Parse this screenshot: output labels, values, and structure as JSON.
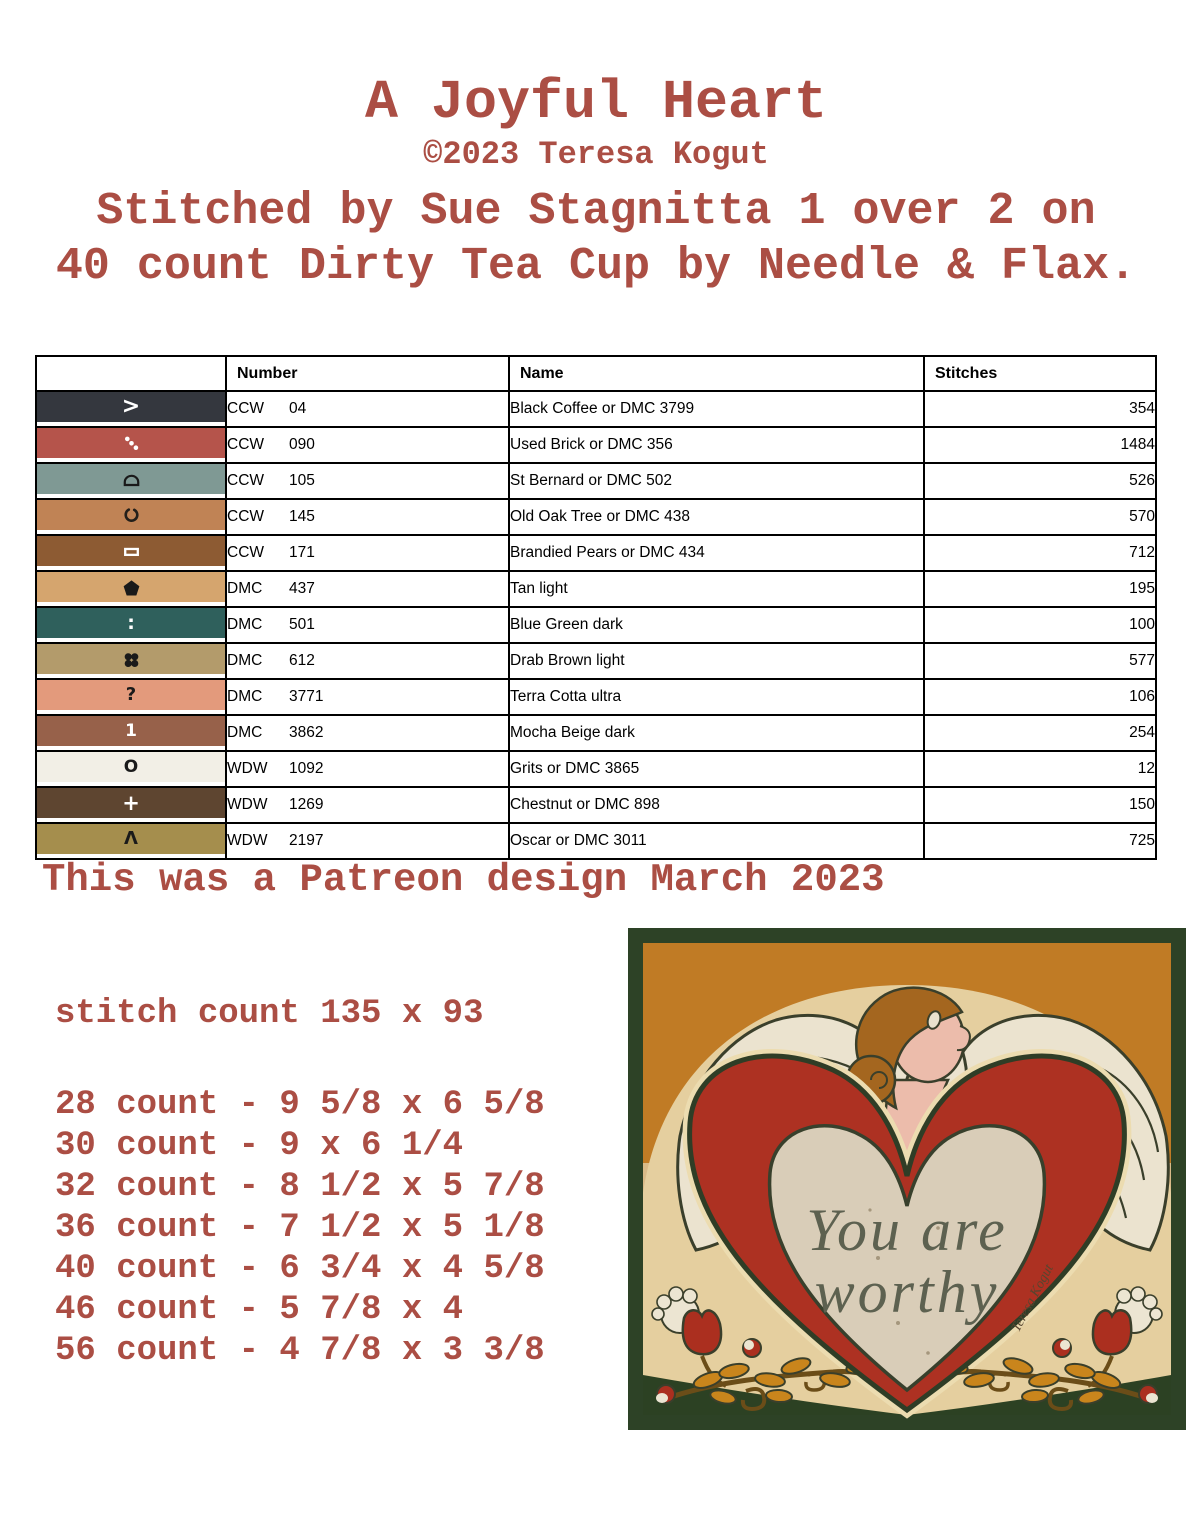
{
  "page": {
    "title": "A Joyful Heart",
    "copyright": "©2023 Teresa Kogut",
    "subtitle_line1": "Stitched by Sue Stagnitta 1 over 2 on",
    "subtitle_line2": "40 count Dirty Tea Cup by Needle & Flax.",
    "patreon_note": "This was a Patreon design March 2023",
    "accent_color": "#ab4e44"
  },
  "table": {
    "headers": {
      "symbol": "",
      "number": "Number",
      "name": "Name",
      "stitches": "Stitches"
    },
    "rows": [
      {
        "symbol": {
          "kind": "text",
          "value": ">",
          "color": "#ffffff",
          "size": 22
        },
        "swatch": "#34373e",
        "brand": "CCW",
        "code": "04",
        "name": "Black Coffee or DMC 3799",
        "stitches": "354"
      },
      {
        "symbol": {
          "kind": "shape",
          "value": "diag-dots",
          "color": "#ffffff"
        },
        "swatch": "#b5544b",
        "brand": "CCW",
        "code": "090",
        "name": "Used Brick or DMC 356",
        "stitches": "1484"
      },
      {
        "symbol": {
          "kind": "shape",
          "value": "arch",
          "color": "#1a1a1a"
        },
        "swatch": "#7f9994",
        "brand": "CCW",
        "code": "105",
        "name": "St Bernard or DMC 502",
        "stitches": "526"
      },
      {
        "symbol": {
          "kind": "shape",
          "value": "hook",
          "color": "#231f1a"
        },
        "swatch": "#c08355",
        "brand": "CCW",
        "code": "145",
        "name": "Old Oak Tree or DMC 438",
        "stitches": "570"
      },
      {
        "symbol": {
          "kind": "shape",
          "value": "rect",
          "color": "#ffffff"
        },
        "swatch": "#8d5b33",
        "brand": "CCW",
        "code": "171",
        "name": "Brandied Pears or DMC 434",
        "stitches": "712"
      },
      {
        "symbol": {
          "kind": "shape",
          "value": "pentagon",
          "color": "#1a1a1a"
        },
        "swatch": "#d5a56e",
        "brand": "DMC",
        "code": "437",
        "name": "Tan light",
        "stitches": "195"
      },
      {
        "symbol": {
          "kind": "text",
          "value": ":",
          "color": "#ffffff",
          "size": 19
        },
        "swatch": "#2f605c",
        "brand": "DMC",
        "code": "501",
        "name": "Blue Green dark",
        "stitches": "100"
      },
      {
        "symbol": {
          "kind": "shape",
          "value": "quatrefoil",
          "color": "#1a1a1a"
        },
        "swatch": "#b39b6b",
        "brand": "DMC",
        "code": "612",
        "name": "Drab Brown light",
        "stitches": "577"
      },
      {
        "symbol": {
          "kind": "text",
          "value": "?",
          "color": "#1a1a1a",
          "size": 18
        },
        "swatch": "#e39a7c",
        "brand": "DMC",
        "code": "3771",
        "name": "Terra Cotta ultra",
        "stitches": "106"
      },
      {
        "symbol": {
          "kind": "text",
          "value": "1",
          "color": "#ffffff",
          "size": 17
        },
        "swatch": "#97614a",
        "brand": "DMC",
        "code": "3862",
        "name": "Mocha Beige dark",
        "stitches": "254"
      },
      {
        "symbol": {
          "kind": "text",
          "value": "O",
          "color": "#1a1a1a",
          "size": 17
        },
        "swatch": "#f2efe6",
        "brand": "WDW",
        "code": "1092",
        "name": "Grits or DMC 3865",
        "stitches": "12"
      },
      {
        "symbol": {
          "kind": "text",
          "value": "+",
          "color": "#ffffff",
          "size": 21
        },
        "swatch": "#5e4530",
        "brand": "WDW",
        "code": "1269",
        "name": "Chestnut or DMC 898",
        "stitches": "150"
      },
      {
        "symbol": {
          "kind": "text",
          "value": "Λ",
          "color": "#1a1a1a",
          "size": 18
        },
        "swatch": "#a58e4d",
        "brand": "WDW",
        "code": "2197",
        "name": "Oscar or DMC 3011",
        "stitches": "725"
      }
    ]
  },
  "size_info": {
    "stitch_count": "stitch count 135 x 93",
    "lines": [
      "28 count - 9 5/8 x 6 5/8",
      "30 count - 9 x 6 1/4",
      "32 count - 8 1/2 x 5 7/8",
      "36 count - 7 1/2 x 5 1/8",
      "40 count - 6 3/4 x 4 5/8",
      "46 count - 5 7/8 x 4",
      "56 count - 4 7/8 x 3 3/8"
    ]
  },
  "artwork": {
    "quote_line1": "You are",
    "quote_line2": "worthy",
    "signature": "Teresa Kogut"
  }
}
